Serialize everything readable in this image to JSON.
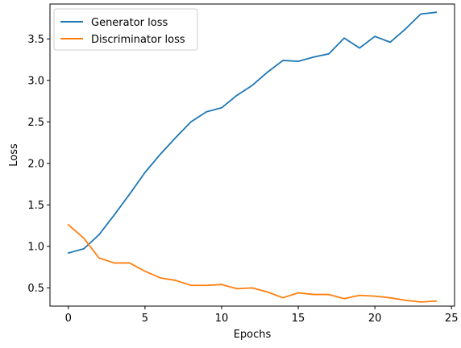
{
  "chart_data": {
    "type": "line",
    "title": "",
    "xlabel": "Epochs",
    "ylabel": "Loss",
    "xlim": [
      -1.2,
      25.2
    ],
    "ylim": [
      0.28,
      3.92
    ],
    "x_ticks": [
      0,
      5,
      10,
      15,
      20,
      25
    ],
    "y_ticks": [
      0.5,
      1.0,
      1.5,
      2.0,
      2.5,
      3.0,
      3.5
    ],
    "grid": false,
    "legend_position": "top-left",
    "x": [
      0,
      1,
      2,
      3,
      4,
      5,
      6,
      7,
      8,
      9,
      10,
      11,
      12,
      13,
      14,
      15,
      16,
      17,
      18,
      19,
      20,
      21,
      22,
      23,
      24
    ],
    "series": [
      {
        "name": "Generator loss",
        "color": "#1f77b4",
        "values": [
          0.92,
          0.97,
          1.14,
          1.38,
          1.63,
          1.89,
          2.11,
          2.31,
          2.5,
          2.62,
          2.67,
          2.82,
          2.94,
          3.1,
          3.24,
          3.23,
          3.28,
          3.32,
          3.51,
          3.39,
          3.53,
          3.46,
          3.62,
          3.8,
          3.82
        ]
      },
      {
        "name": "Discriminator loss",
        "color": "#ff7f0e",
        "values": [
          1.26,
          1.1,
          0.86,
          0.8,
          0.8,
          0.7,
          0.62,
          0.59,
          0.53,
          0.53,
          0.54,
          0.49,
          0.5,
          0.45,
          0.38,
          0.44,
          0.42,
          0.42,
          0.37,
          0.41,
          0.4,
          0.38,
          0.35,
          0.33,
          0.34
        ]
      }
    ]
  }
}
